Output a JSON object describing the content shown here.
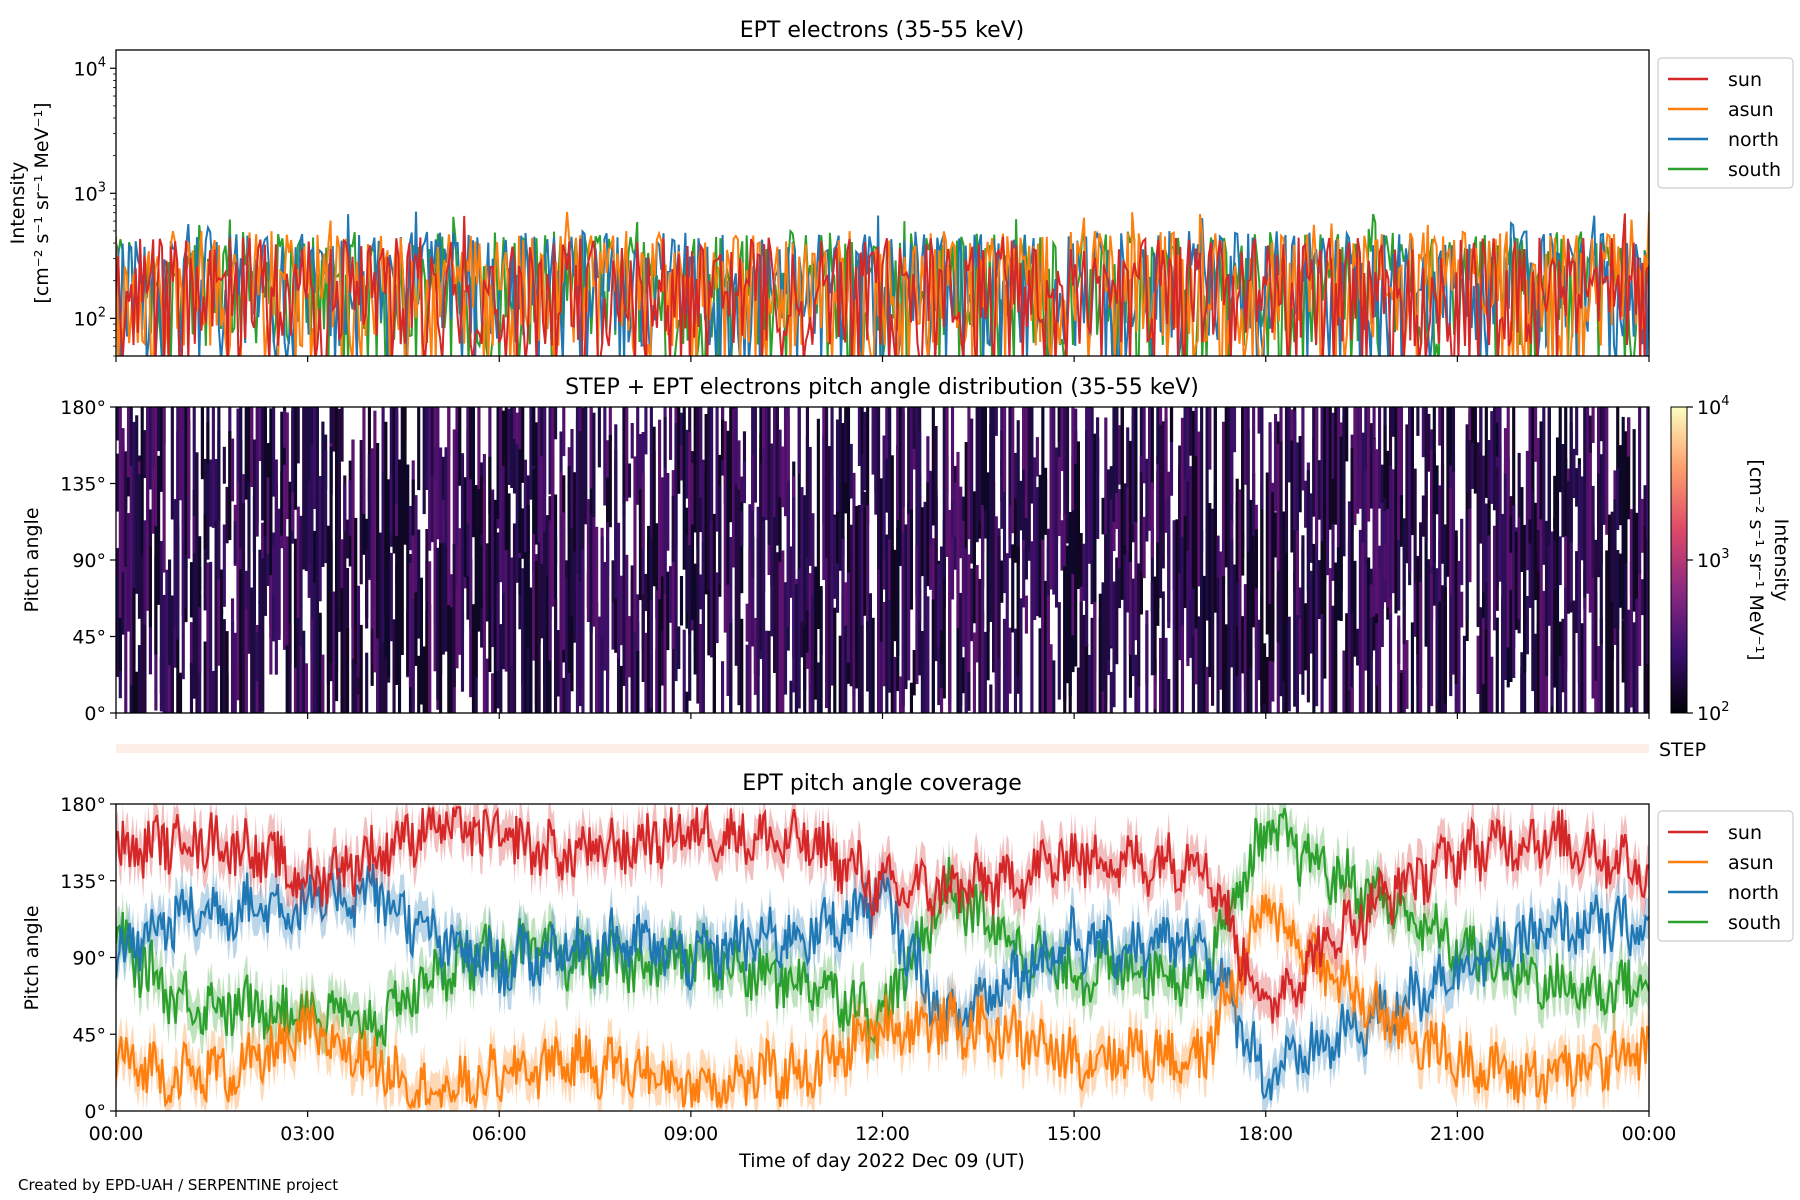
{
  "figure": {
    "credit": "Created by EPD-UAH / SERPENTINE project",
    "xlabel": "Time of day 2022 Dec 09 (UT)",
    "x_tick_labels": [
      "00:00",
      "03:00",
      "06:00",
      "09:00",
      "12:00",
      "15:00",
      "18:00",
      "21:00",
      "00:00"
    ]
  },
  "colors": {
    "sun": "#d62728",
    "asun": "#ff7f0e",
    "north": "#1f77b4",
    "south": "#2ca02c"
  },
  "chart_data": [
    {
      "type": "line",
      "title": "EPT electrons (35-55 keV)",
      "ylabel_line1": "Intensity",
      "ylabel_line2": "[cm⁻² s⁻¹ sr⁻¹ MeV⁻¹]",
      "yscale": "log",
      "ylim": [
        50,
        14000
      ],
      "y_tick_labels": [
        {
          "value": 100,
          "base": "10",
          "exp": "2"
        },
        {
          "value": 1000,
          "base": "10",
          "exp": "3"
        },
        {
          "value": 10000,
          "base": "10",
          "exp": "4"
        }
      ],
      "xlim_hours": [
        0,
        24
      ],
      "legend": {
        "placement": "outside-right",
        "entries": [
          "sun",
          "asun",
          "north",
          "south"
        ]
      },
      "series": [
        {
          "name": "sun",
          "typical_range": [
            60,
            450
          ],
          "peak": 750
        },
        {
          "name": "asun",
          "typical_range": [
            60,
            500
          ],
          "peak": 720
        },
        {
          "name": "north",
          "typical_range": [
            60,
            500
          ],
          "peak": 740
        },
        {
          "name": "south",
          "typical_range": [
            60,
            500
          ],
          "peak": 700
        }
      ]
    },
    {
      "type": "heatmap",
      "title": "STEP + EPT electrons pitch angle distribution (35-55 keV)",
      "ylabel": "Pitch angle",
      "y_tick_labels": [
        "0°",
        "45°",
        "90°",
        "135°",
        "180°"
      ],
      "ylim": [
        0,
        180
      ],
      "colorbar": {
        "label_line1": "Intensity",
        "label_line2": "[cm⁻² s⁻¹ sr⁻¹ MeV⁻¹]",
        "scale": "log",
        "range": [
          100,
          10000
        ],
        "tick_labels": [
          {
            "base": "10",
            "exp": "2"
          },
          {
            "base": "10",
            "exp": "3"
          },
          {
            "base": "10",
            "exp": "4"
          }
        ],
        "colormap": "inferno"
      },
      "step_strip_label": "STEP"
    },
    {
      "type": "line",
      "title": "EPT pitch angle coverage",
      "ylabel": "Pitch angle",
      "y_tick_labels": [
        "0°",
        "45°",
        "90°",
        "135°",
        "180°"
      ],
      "ylim": [
        0,
        180
      ],
      "legend": {
        "placement": "outside-right",
        "entries": [
          "sun",
          "asun",
          "north",
          "south"
        ]
      },
      "series": [
        {
          "name": "sun",
          "hours": [
            0,
            1,
            2,
            3,
            4,
            5,
            6,
            7,
            8,
            9,
            10,
            11,
            12,
            13,
            14,
            15,
            16,
            17,
            18,
            19,
            20,
            21,
            22,
            23,
            24
          ],
          "values": [
            150,
            160,
            155,
            135,
            150,
            170,
            160,
            150,
            155,
            165,
            160,
            155,
            130,
            130,
            135,
            150,
            145,
            150,
            60,
            100,
            130,
            150,
            160,
            155,
            140
          ]
        },
        {
          "name": "asun",
          "hours": [
            0,
            1,
            2,
            3,
            4,
            5,
            6,
            7,
            8,
            9,
            10,
            11,
            12,
            13,
            14,
            15,
            16,
            17,
            18,
            19,
            20,
            21,
            22,
            23,
            24
          ],
          "values": [
            30,
            20,
            25,
            45,
            30,
            10,
            20,
            30,
            25,
            15,
            20,
            25,
            50,
            50,
            45,
            30,
            35,
            30,
            120,
            80,
            50,
            30,
            20,
            25,
            40
          ]
        },
        {
          "name": "north",
          "hours": [
            0,
            1,
            2,
            3,
            4,
            5,
            6,
            7,
            8,
            9,
            10,
            11,
            12,
            13,
            14,
            15,
            16,
            17,
            18,
            19,
            20,
            21,
            22,
            23,
            24
          ],
          "values": [
            90,
            115,
            120,
            120,
            130,
            100,
            85,
            95,
            100,
            90,
            100,
            105,
            125,
            50,
            80,
            100,
            95,
            100,
            20,
            40,
            60,
            85,
            100,
            110,
            105
          ]
        },
        {
          "name": "south",
          "hours": [
            0,
            1,
            2,
            3,
            4,
            5,
            6,
            7,
            8,
            9,
            10,
            11,
            12,
            13,
            14,
            15,
            16,
            17,
            18,
            19,
            20,
            21,
            22,
            23,
            24
          ],
          "values": [
            100,
            65,
            60,
            60,
            50,
            80,
            95,
            90,
            85,
            90,
            80,
            75,
            55,
            130,
            100,
            80,
            85,
            80,
            165,
            140,
            120,
            95,
            80,
            70,
            75
          ]
        }
      ]
    }
  ]
}
